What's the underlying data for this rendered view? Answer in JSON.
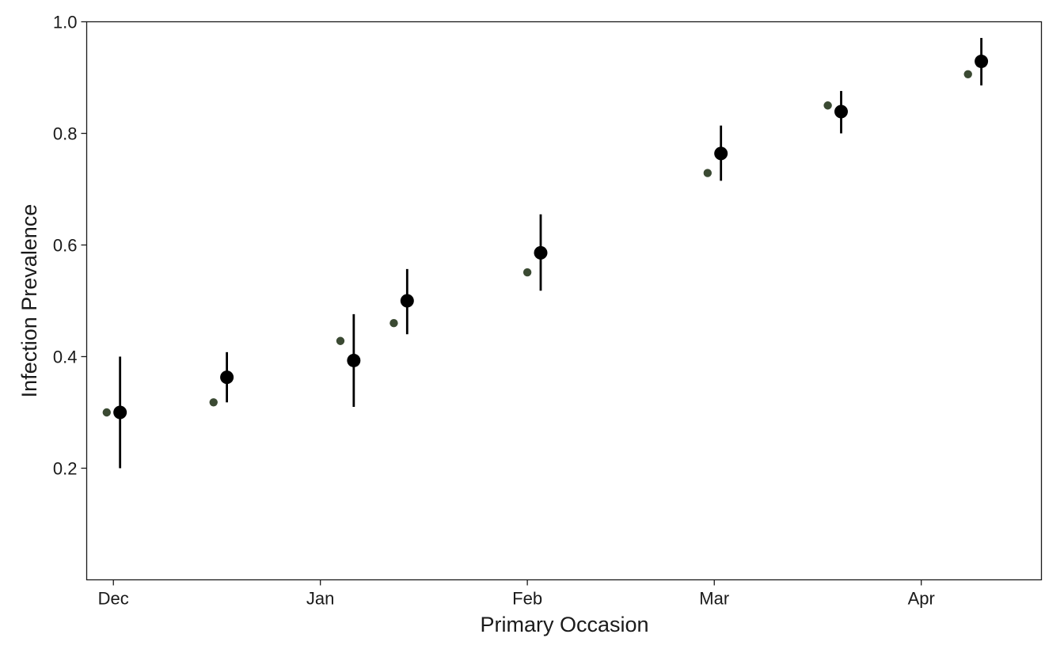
{
  "chart_data": {
    "type": "scatter",
    "title": "",
    "xlabel": "Primary Occasion",
    "ylabel": "Infection Prevalence",
    "x_ticks": [
      "Dec",
      "Jan",
      "Feb",
      "Mar",
      "Apr"
    ],
    "y_ticks": [
      0.2,
      0.4,
      0.6,
      0.8,
      1.0
    ],
    "y_tick_labels": [
      "0.2",
      "0.4",
      "0.6",
      "0.8",
      "1.0"
    ],
    "ylim": [
      0.0,
      1.0
    ],
    "xlim": [
      "Nov 27",
      "Apr 19"
    ],
    "grid": false,
    "legend": "none",
    "series": [
      {
        "marker": "small-dot",
        "color": "#3b4a33",
        "points": [
          {
            "x": "Nov 30",
            "y": 0.3
          },
          {
            "x": "Dec 16",
            "y": 0.318
          },
          {
            "x": "Jan 4",
            "y": 0.428
          },
          {
            "x": "Jan 12",
            "y": 0.46
          },
          {
            "x": "Feb 1",
            "y": 0.551
          },
          {
            "x": "Feb 28",
            "y": 0.729
          },
          {
            "x": "Mar 18",
            "y": 0.85
          },
          {
            "x": "Apr 8",
            "y": 0.906
          }
        ]
      },
      {
        "marker": "large-dot-with-errorbar",
        "color": "#000000",
        "points": [
          {
            "x": "Dec 2",
            "y": 0.3,
            "lo": 0.2,
            "hi": 0.4
          },
          {
            "x": "Dec 18",
            "y": 0.363,
            "lo": 0.318,
            "hi": 0.408
          },
          {
            "x": "Jan 6",
            "y": 0.393,
            "lo": 0.31,
            "hi": 0.476
          },
          {
            "x": "Jan 14",
            "y": 0.5,
            "lo": 0.44,
            "hi": 0.557
          },
          {
            "x": "Feb 3",
            "y": 0.586,
            "lo": 0.518,
            "hi": 0.655
          },
          {
            "x": "Mar 2",
            "y": 0.764,
            "lo": 0.715,
            "hi": 0.814
          },
          {
            "x": "Mar 20",
            "y": 0.839,
            "lo": 0.8,
            "hi": 0.876
          },
          {
            "x": "Apr 10",
            "y": 0.929,
            "lo": 0.886,
            "hi": 0.971
          }
        ]
      }
    ]
  }
}
